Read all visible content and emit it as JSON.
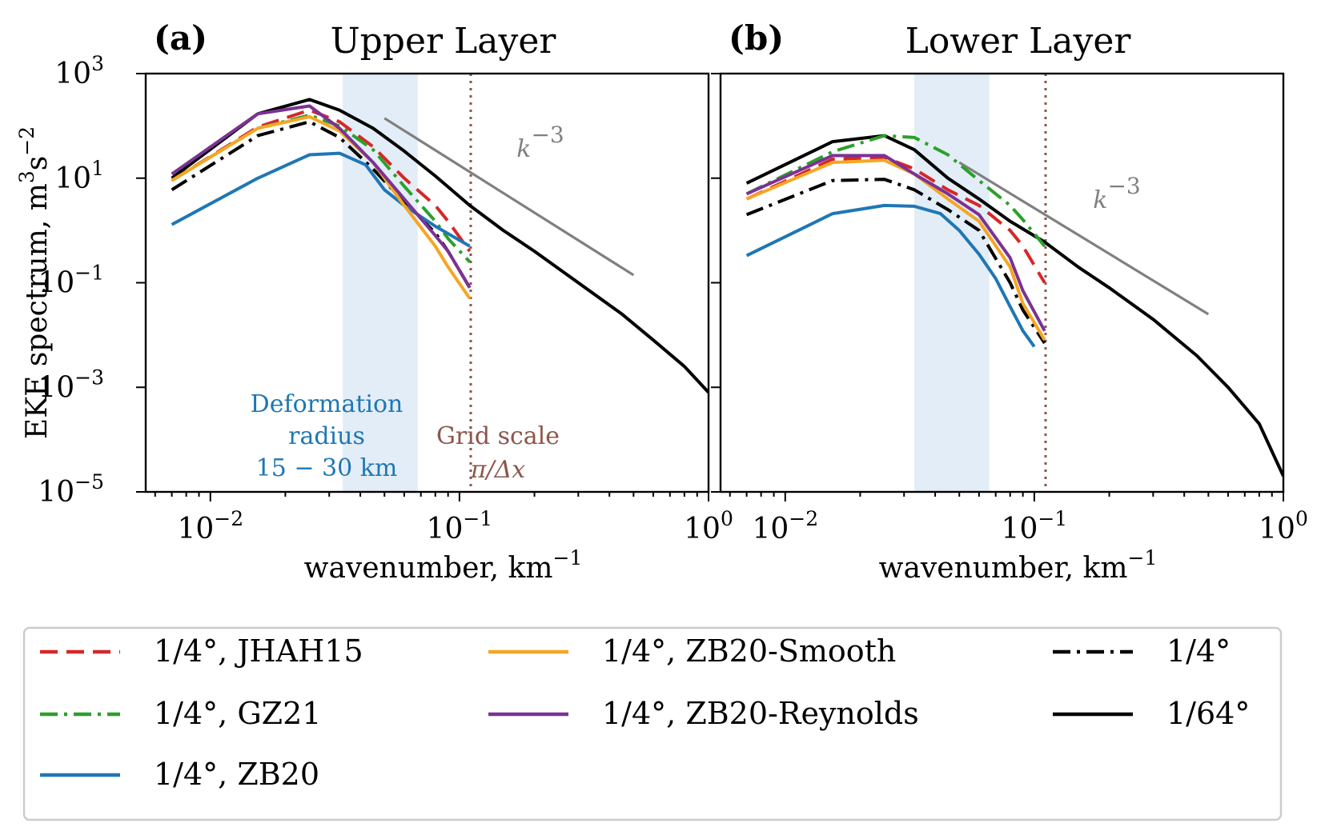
{
  "colors": {
    "JHAH15": "#d62728",
    "GZ21": "#2ca02c",
    "ZB20": "#1f77b4",
    "ZB20-Smooth": "#f5a623",
    "ZB20-Reynolds": "#7b3294",
    "coarse": "#000000",
    "fine": "#000000",
    "kline": "#808080",
    "grid": "#8c564b",
    "deformation_text": "#1f77b4",
    "deformation_band": "#e3edf7"
  },
  "chart_data": [
    {
      "type": "line",
      "panel_tag": "(a)",
      "title": "Upper Layer",
      "xlabel": "wavenumber, km",
      "xlabel_sup": "−1",
      "ylabel": "EKE spectrum, m",
      "ylabel_sup1": "3",
      "ylabel_mid": "s",
      "ylabel_sup2": "−2",
      "xscale": "log",
      "yscale": "log",
      "xlim": [
        0.0055,
        1.0
      ],
      "ylim": [
        1e-05,
        1000
      ],
      "xticks": [
        {
          "value": 0.01,
          "base": "10",
          "exp": "−2"
        },
        {
          "value": 0.1,
          "base": "10",
          "exp": "−1"
        },
        {
          "value": 1.0,
          "base": "10",
          "exp": "0"
        }
      ],
      "yticks": [
        {
          "value": 1000,
          "base": "10",
          "exp": "3"
        },
        {
          "value": 10,
          "base": "10",
          "exp": "1"
        },
        {
          "value": 0.1,
          "base": "10",
          "exp": "−1"
        },
        {
          "value": 0.001,
          "base": "10",
          "exp": "−3"
        },
        {
          "value": 1e-05,
          "base": "10",
          "exp": "−5"
        }
      ],
      "show_ytick_labels": true,
      "deformation_band": [
        0.034,
        0.068
      ],
      "deformation_label": [
        "Deformation",
        "radius",
        "15 − 30 km"
      ],
      "grid_scale_x": 0.111,
      "grid_scale_label": [
        "Grid scale",
        "π/Δx"
      ],
      "kline": {
        "x": [
          0.05,
          0.5
        ],
        "y": [
          140,
          0.14
        ],
        "label": "k",
        "label_sup": "−3"
      },
      "series": [
        {
          "key": "fine",
          "style": "solid",
          "x": [
            0.007,
            0.0155,
            0.025,
            0.033,
            0.045,
            0.06,
            0.08,
            0.11,
            0.15,
            0.2,
            0.3,
            0.45,
            0.6,
            0.8,
            1.0
          ],
          "y": [
            10,
            170,
            320,
            200,
            90,
            33,
            11,
            3,
            1.0,
            0.4,
            0.1,
            0.025,
            0.008,
            0.0025,
            0.0008
          ]
        },
        {
          "key": "coarse",
          "style": "dashdot",
          "x": [
            0.007,
            0.0155,
            0.025,
            0.033,
            0.045,
            0.06,
            0.08,
            0.09,
            0.11
          ],
          "y": [
            6,
            65,
            120,
            60,
            15,
            3.5,
            0.9,
            0.4,
            0.08
          ]
        },
        {
          "key": "JHAH15",
          "style": "dashed",
          "x": [
            0.007,
            0.0155,
            0.025,
            0.033,
            0.045,
            0.06,
            0.08,
            0.09,
            0.11
          ],
          "y": [
            9,
            95,
            200,
            120,
            40,
            10,
            3,
            1.5,
            0.4
          ]
        },
        {
          "key": "GZ21",
          "style": "dashdot",
          "x": [
            0.007,
            0.0155,
            0.025,
            0.033,
            0.045,
            0.06,
            0.08,
            0.09,
            0.11
          ],
          "y": [
            9,
            90,
            160,
            100,
            35,
            7,
            1.5,
            0.7,
            0.25
          ]
        },
        {
          "key": "ZB20",
          "style": "solid",
          "x": [
            0.007,
            0.0155,
            0.025,
            0.033,
            0.042,
            0.05,
            0.06,
            0.08,
            0.11
          ],
          "y": [
            1.3,
            10,
            28,
            30,
            18,
            6,
            3,
            1.2,
            0.5
          ]
        },
        {
          "key": "ZB20-Smooth",
          "style": "solid",
          "x": [
            0.007,
            0.0155,
            0.025,
            0.033,
            0.045,
            0.06,
            0.08,
            0.09,
            0.11
          ],
          "y": [
            9,
            90,
            150,
            80,
            20,
            3,
            0.5,
            0.2,
            0.05
          ]
        },
        {
          "key": "ZB20-Reynolds",
          "style": "solid",
          "x": [
            0.007,
            0.0155,
            0.025,
            0.033,
            0.045,
            0.06,
            0.08,
            0.09,
            0.11
          ],
          "y": [
            12,
            170,
            240,
            90,
            20,
            4,
            0.8,
            0.4,
            0.08
          ]
        }
      ]
    },
    {
      "type": "line",
      "panel_tag": "(b)",
      "title": "Lower Layer",
      "xlabel": "wavenumber, km",
      "xlabel_sup": "−1",
      "ylabel": "",
      "xscale": "log",
      "yscale": "log",
      "xlim": [
        0.0055,
        1.0
      ],
      "ylim": [
        1e-05,
        1000
      ],
      "xticks": [
        {
          "value": 0.01,
          "base": "10",
          "exp": "−2"
        },
        {
          "value": 0.1,
          "base": "10",
          "exp": "−1"
        },
        {
          "value": 1.0,
          "base": "10",
          "exp": "0"
        }
      ],
      "yticks": [
        {
          "value": 1000
        },
        {
          "value": 10
        },
        {
          "value": 0.1
        },
        {
          "value": 0.001
        },
        {
          "value": 1e-05
        }
      ],
      "show_ytick_labels": false,
      "deformation_band": [
        0.033,
        0.066
      ],
      "grid_scale_x": 0.111,
      "kline": {
        "x": [
          0.05,
          0.5
        ],
        "y": [
          20,
          0.025
        ],
        "label": "k",
        "label_sup": "−3"
      },
      "series": [
        {
          "key": "fine",
          "style": "solid",
          "x": [
            0.007,
            0.0155,
            0.025,
            0.033,
            0.045,
            0.06,
            0.08,
            0.11,
            0.15,
            0.2,
            0.3,
            0.45,
            0.6,
            0.8,
            1.0
          ],
          "y": [
            8,
            50,
            65,
            35,
            10,
            4,
            1.5,
            0.6,
            0.2,
            0.08,
            0.02,
            0.004,
            0.001,
            0.0002,
            2e-05
          ]
        },
        {
          "key": "coarse",
          "style": "dashdot",
          "x": [
            0.007,
            0.0155,
            0.025,
            0.033,
            0.045,
            0.06,
            0.08,
            0.09,
            0.11
          ],
          "y": [
            2,
            9,
            9.5,
            6,
            2.5,
            1,
            0.1,
            0.03,
            0.007
          ]
        },
        {
          "key": "JHAH15",
          "style": "dashed",
          "x": [
            0.007,
            0.0155,
            0.025,
            0.033,
            0.045,
            0.06,
            0.08,
            0.09,
            0.11
          ],
          "y": [
            4,
            23,
            25,
            15,
            6,
            3,
            1.0,
            0.5,
            0.1
          ]
        },
        {
          "key": "GZ21",
          "style": "dashdot",
          "x": [
            0.007,
            0.0155,
            0.025,
            0.033,
            0.045,
            0.06,
            0.08,
            0.09,
            0.11
          ],
          "y": [
            5,
            32,
            65,
            60,
            28,
            9,
            3,
            1.6,
            0.5
          ]
        },
        {
          "key": "ZB20",
          "style": "solid",
          "x": [
            0.007,
            0.0155,
            0.025,
            0.033,
            0.042,
            0.05,
            0.06,
            0.07,
            0.08,
            0.09,
            0.1
          ],
          "y": [
            0.33,
            2.1,
            3,
            2.9,
            2.1,
            1.0,
            0.35,
            0.12,
            0.035,
            0.012,
            0.006
          ]
        },
        {
          "key": "ZB20-Smooth",
          "style": "solid",
          "x": [
            0.007,
            0.0155,
            0.025,
            0.033,
            0.045,
            0.06,
            0.08,
            0.09,
            0.11
          ],
          "y": [
            4,
            20,
            22,
            12,
            4,
            1.5,
            0.2,
            0.04,
            0.008
          ]
        },
        {
          "key": "ZB20-Reynolds",
          "style": "solid",
          "x": [
            0.007,
            0.0155,
            0.025,
            0.033,
            0.045,
            0.06,
            0.08,
            0.09,
            0.11
          ],
          "y": [
            5,
            27,
            27,
            12,
            5,
            2,
            0.3,
            0.07,
            0.012
          ]
        }
      ]
    }
  ],
  "legend": {
    "placement": "bottom",
    "entries": [
      {
        "key": "JHAH15",
        "style": "dashed",
        "label": "1/4°, JHAH15"
      },
      {
        "key": "GZ21",
        "style": "dashdot",
        "label": "1/4°, GZ21"
      },
      {
        "key": "ZB20",
        "style": "solid",
        "label": "1/4°, ZB20"
      },
      {
        "key": "ZB20-Smooth",
        "style": "solid",
        "label": "1/4°, ZB20-Smooth"
      },
      {
        "key": "ZB20-Reynolds",
        "style": "solid",
        "label": "1/4°, ZB20-Reynolds"
      },
      {
        "key": "coarse",
        "style": "dashdot",
        "label": "1/4°"
      },
      {
        "key": "fine",
        "style": "solid",
        "label": "1/64°"
      }
    ]
  }
}
